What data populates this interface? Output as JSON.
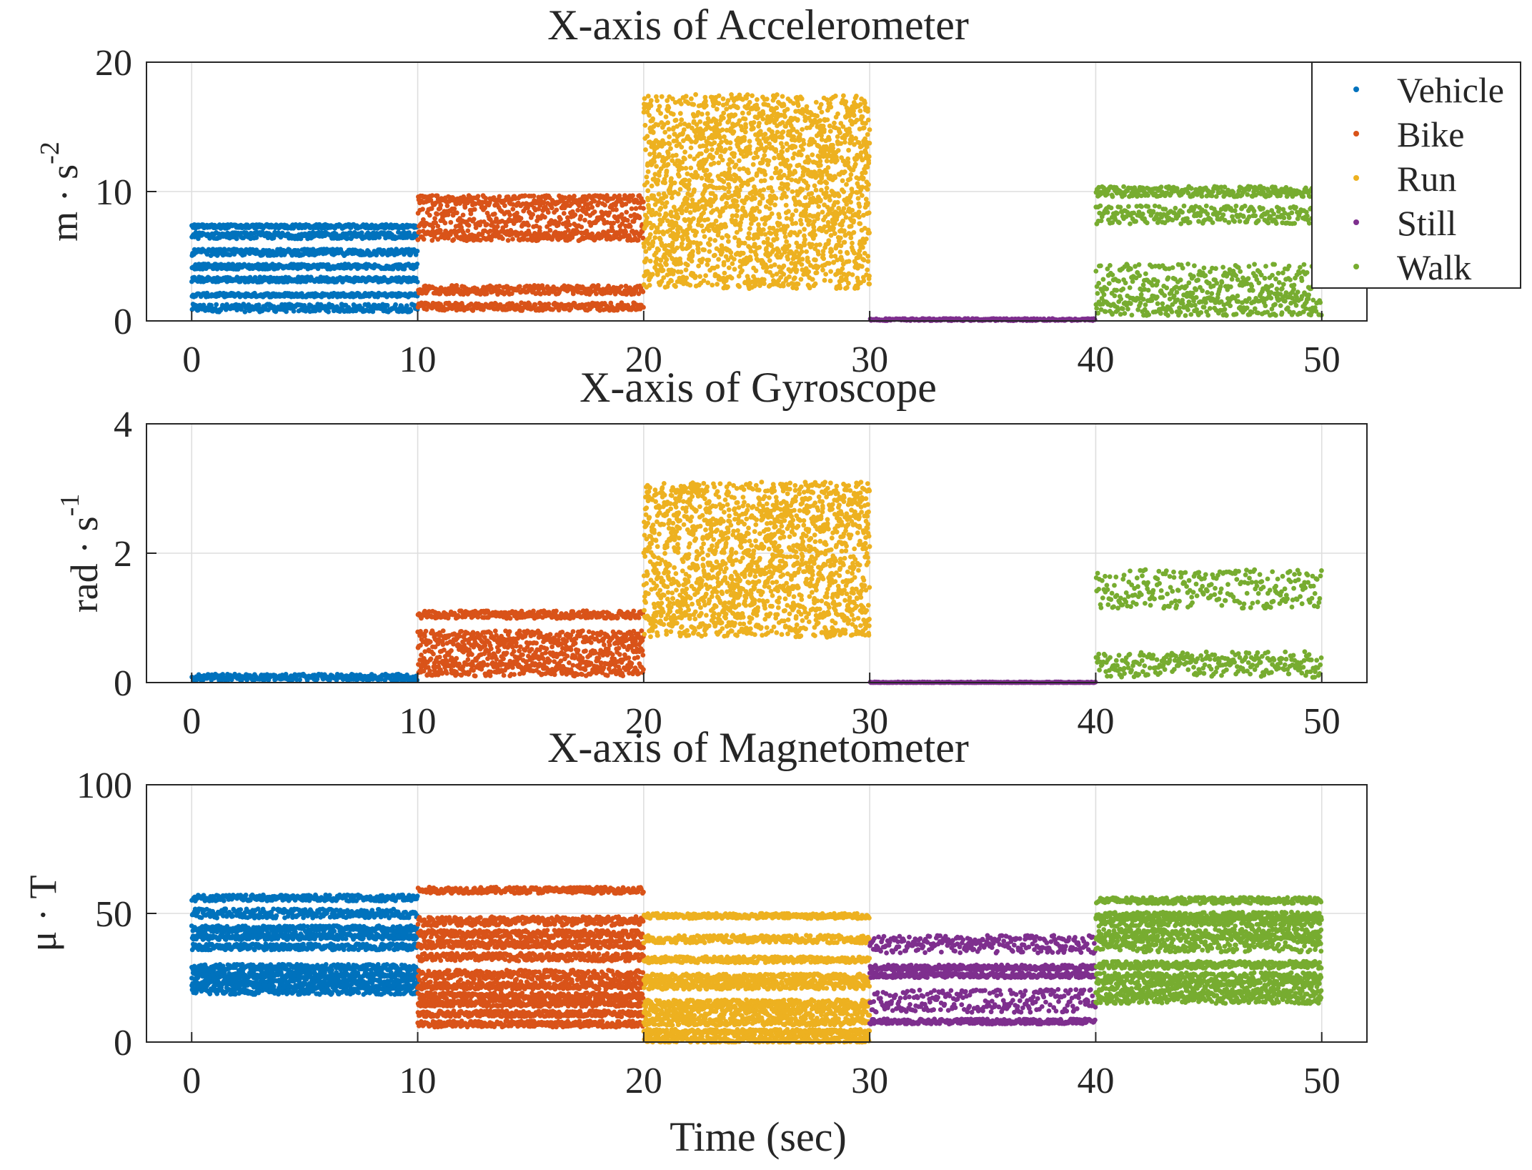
{
  "chart_data": [
    {
      "type": "scatter",
      "title": "X-axis of Accelerometer",
      "ylabel": "m · s^-2",
      "xlabel": "",
      "xlim": [
        -2,
        52
      ],
      "ylim": [
        0,
        20
      ],
      "xticks": [
        "0",
        "10",
        "20",
        "30",
        "40",
        "50"
      ],
      "yticks": [
        "0",
        "10",
        "20"
      ],
      "grid": true,
      "series": [
        {
          "name": "Vehicle",
          "x_range": [
            0,
            10
          ],
          "bands": [
            [
              1.0,
              0.3
            ],
            [
              2.0,
              0.15
            ],
            [
              3.2,
              0.2
            ],
            [
              4.2,
              0.2
            ],
            [
              5.3,
              0.25
            ],
            [
              6.6,
              0.25
            ],
            [
              7.3,
              0.15
            ]
          ]
        },
        {
          "name": "Bike",
          "x_range": [
            10,
            20
          ],
          "bands": [
            [
              1.1,
              0.3
            ],
            [
              2.4,
              0.35
            ],
            [
              6.6,
              0.4
            ],
            [
              8.0,
              0.8
            ],
            [
              9.3,
              0.4
            ]
          ]
        },
        {
          "name": "Run",
          "x_range": [
            20,
            30
          ],
          "bands": [
            [
              10.0,
              7.5
            ]
          ]
        },
        {
          "name": "Still",
          "x_range": [
            30,
            40
          ],
          "bands": [
            [
              0.1,
              0.08
            ]
          ]
        },
        {
          "name": "Walk",
          "x_range": [
            40,
            50
          ],
          "bands": [
            [
              1.2,
              0.8
            ],
            [
              3.2,
              1.2
            ],
            [
              8.2,
              0.7
            ],
            [
              10.0,
              0.4
            ]
          ]
        }
      ]
    },
    {
      "type": "scatter",
      "title": "X-axis of Gyroscope",
      "ylabel": "rad · s^-1",
      "xlabel": "",
      "xlim": [
        -2,
        52
      ],
      "ylim": [
        0,
        4
      ],
      "xticks": [
        "0",
        "10",
        "20",
        "30",
        "40",
        "50"
      ],
      "yticks": [
        "0",
        "2",
        "4"
      ],
      "grid": true,
      "series": [
        {
          "name": "Vehicle",
          "x_range": [
            0,
            10
          ],
          "bands": [
            [
              0.08,
              0.05
            ]
          ]
        },
        {
          "name": "Bike",
          "x_range": [
            10,
            20
          ],
          "bands": [
            [
              0.2,
              0.1
            ],
            [
              0.45,
              0.15
            ],
            [
              0.7,
              0.1
            ],
            [
              1.05,
              0.06
            ]
          ]
        },
        {
          "name": "Run",
          "x_range": [
            20,
            30
          ],
          "bands": [
            [
              1.9,
              1.2
            ]
          ]
        },
        {
          "name": "Still",
          "x_range": [
            30,
            40
          ],
          "bands": [
            [
              0.0,
              0.01
            ]
          ]
        },
        {
          "name": "Walk",
          "x_range": [
            40,
            50
          ],
          "bands": [
            [
              0.28,
              0.2
            ],
            [
              1.45,
              0.3
            ]
          ]
        }
      ]
    },
    {
      "type": "scatter",
      "title": "X-axis of Magnetometer",
      "ylabel": "μ · T",
      "xlabel": "Time (sec)",
      "xlim": [
        -2,
        52
      ],
      "ylim": [
        0,
        100
      ],
      "xticks": [
        "0",
        "10",
        "20",
        "30",
        "40",
        "50"
      ],
      "yticks": [
        "0",
        "50",
        "100"
      ],
      "grid": true,
      "series": [
        {
          "name": "Vehicle",
          "x_range": [
            0,
            10
          ],
          "bands": [
            [
              20,
              1.5
            ],
            [
              23,
              1.5
            ],
            [
              26,
              1.2
            ],
            [
              29,
              1.2
            ],
            [
              37,
              1.2
            ],
            [
              41,
              1.2
            ],
            [
              44,
              1.2
            ],
            [
              50,
              1.8
            ],
            [
              56,
              1.2
            ]
          ]
        },
        {
          "name": "Bike",
          "x_range": [
            10,
            20
          ],
          "bands": [
            [
              7,
              1.2
            ],
            [
              11,
              1.2
            ],
            [
              15,
              1.2
            ],
            [
              18,
              1.2
            ],
            [
              22,
              1.5
            ],
            [
              26,
              2
            ],
            [
              33,
              1.5
            ],
            [
              38,
              1.5
            ],
            [
              42,
              1.5
            ],
            [
              47,
              1.8
            ],
            [
              59,
              1.2
            ]
          ]
        },
        {
          "name": "Run",
          "x_range": [
            20,
            30
          ],
          "bands": [
            [
              1,
              1.5
            ],
            [
              4,
              1
            ],
            [
              8,
              1.5
            ],
            [
              12,
              2
            ],
            [
              15,
              1.5
            ],
            [
              22,
              1.5
            ],
            [
              25,
              1.5
            ],
            [
              32,
              1.2
            ],
            [
              40,
              1.5
            ],
            [
              49,
              1
            ]
          ]
        },
        {
          "name": "Still",
          "x_range": [
            30,
            40
          ],
          "bands": [
            [
              8,
              1
            ],
            [
              16,
              4.5
            ],
            [
              26,
              1
            ],
            [
              29,
              1
            ],
            [
              38,
              3.5
            ]
          ]
        },
        {
          "name": "Walk",
          "x_range": [
            40,
            50
          ],
          "bands": [
            [
              17,
              2
            ],
            [
              21,
              2.5
            ],
            [
              25,
              2
            ],
            [
              30,
              1.5
            ],
            [
              38,
              3
            ],
            [
              42,
              2
            ],
            [
              47,
              2
            ],
            [
              49,
              1.5
            ],
            [
              55,
              1.2
            ]
          ]
        }
      ]
    }
  ],
  "legend": {
    "placement": "top-right",
    "items": [
      {
        "label": "Vehicle",
        "color": "#0072BD"
      },
      {
        "label": "Bike",
        "color": "#D95319"
      },
      {
        "label": "Run",
        "color": "#EDB120"
      },
      {
        "label": "Still",
        "color": "#7E2F8E"
      },
      {
        "label": "Walk",
        "color": "#77AC30"
      }
    ]
  },
  "colors": {
    "Vehicle": "#0072BD",
    "Bike": "#D95319",
    "Run": "#EDB120",
    "Still": "#7E2F8E",
    "Walk": "#77AC30",
    "grid": "#DEDEDE",
    "axis": "#262626"
  }
}
